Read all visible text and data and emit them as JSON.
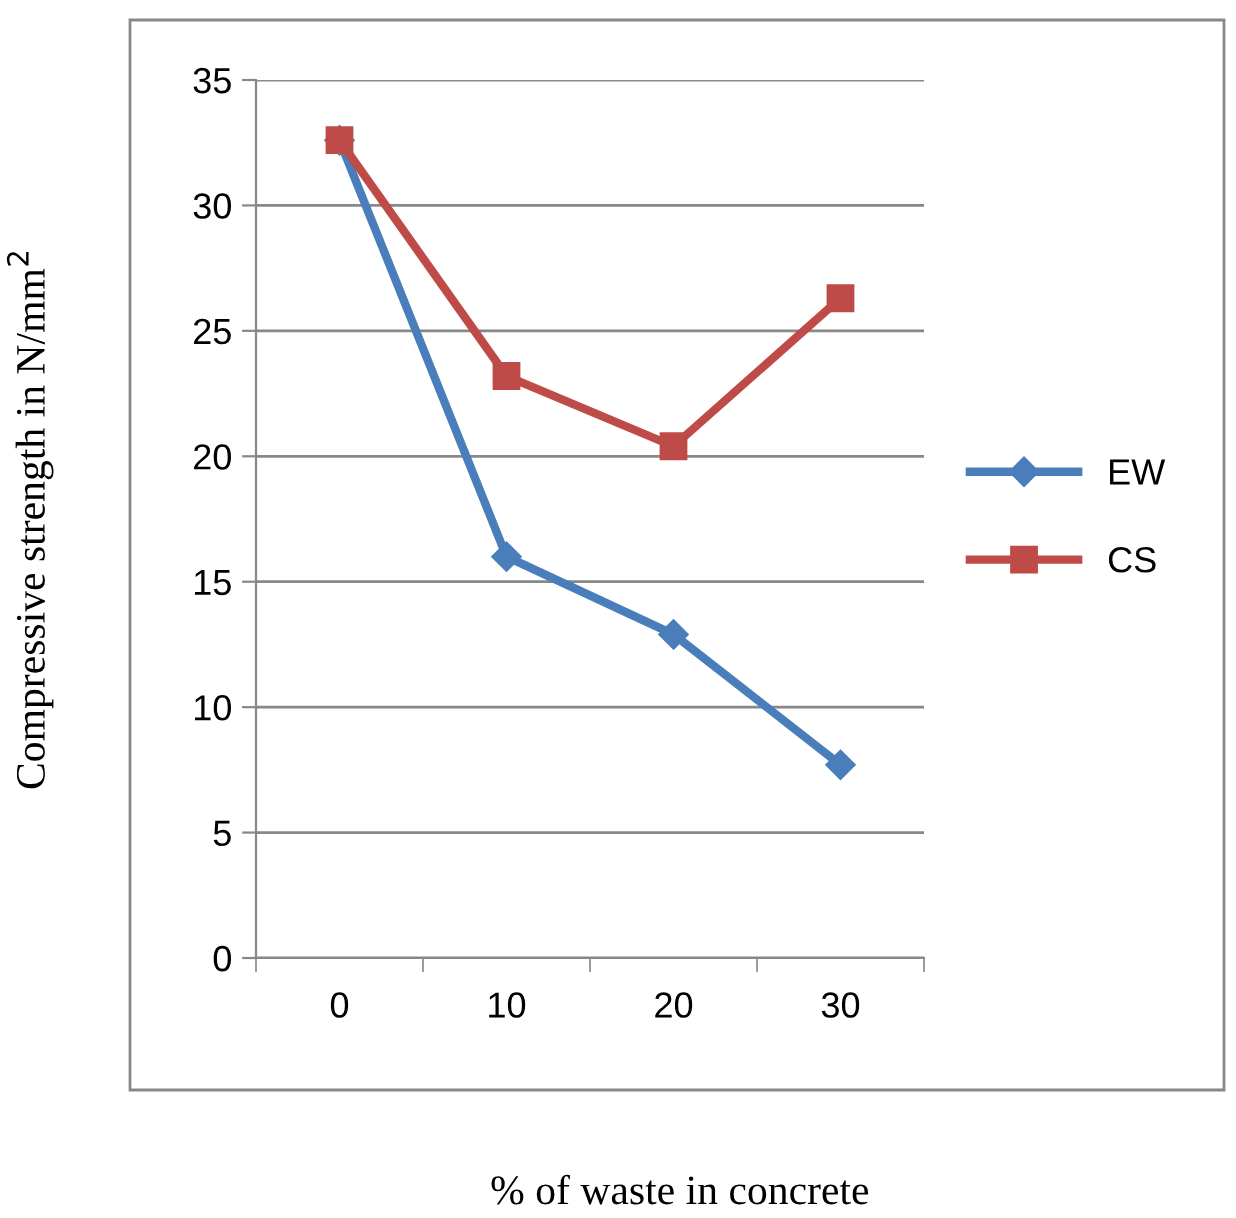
{
  "chart_data": {
    "type": "line",
    "xlabel": "% of waste in concrete",
    "ylabel": "Compressive strength in N/mm$^{2}$",
    "categories": [
      "0",
      "10",
      "20",
      "30"
    ],
    "series": [
      {
        "name": "EW",
        "color": "#4a7ebb",
        "marker": "diamond",
        "values": [
          32.6,
          16.0,
          12.9,
          7.7
        ]
      },
      {
        "name": "CS",
        "color": "#be4b48",
        "marker": "square",
        "values": [
          32.6,
          23.2,
          20.4,
          26.3
        ]
      }
    ],
    "ylim": [
      0,
      35
    ],
    "yticks": [
      0,
      5,
      10,
      15,
      20,
      25,
      30,
      35
    ],
    "grid": "y",
    "legend": "right",
    "line_style": "solid"
  }
}
